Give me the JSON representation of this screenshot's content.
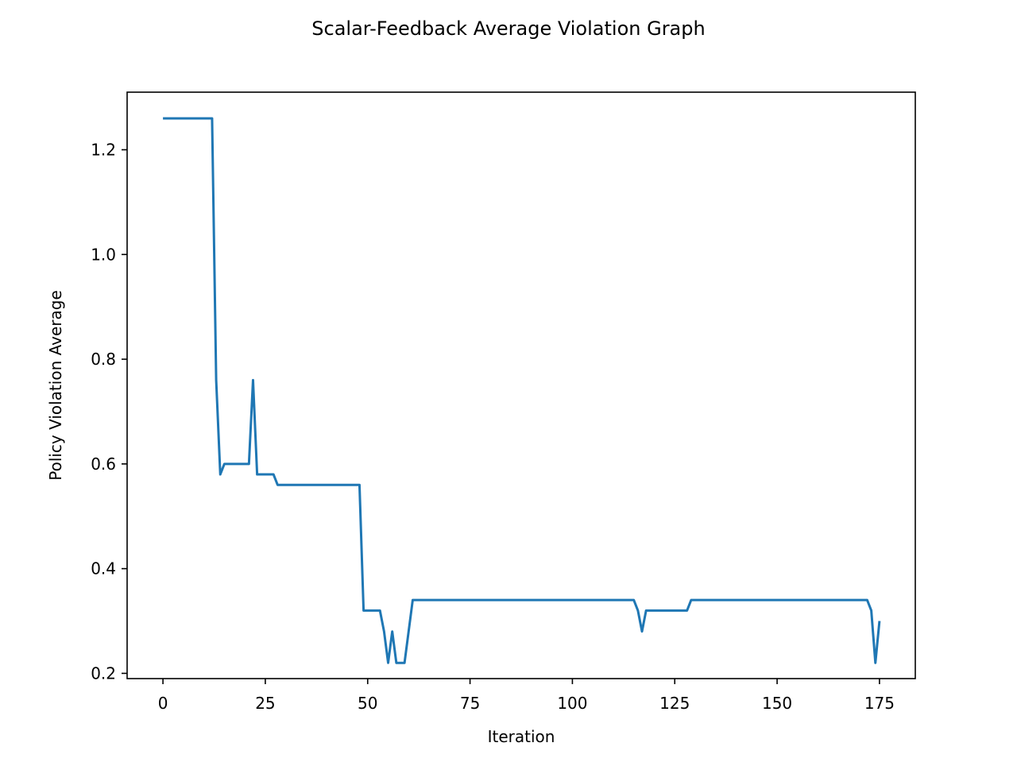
{
  "chart_data": {
    "type": "line",
    "title": "Scalar-Feedback Average Violation Graph",
    "xlabel": "Iteration",
    "ylabel": "Policy Violation Average",
    "xlim": [
      -8.75,
      183.75
    ],
    "ylim": [
      0.19,
      1.31
    ],
    "xticks": [
      0,
      25,
      50,
      75,
      100,
      125,
      150,
      175
    ],
    "yticks": [
      0.2,
      0.4,
      0.6,
      0.8,
      1.0,
      1.2
    ],
    "ytick_labels": [
      "0.2",
      "0.4",
      "0.6",
      "0.8",
      "1.0",
      "1.2"
    ],
    "grid": false,
    "series": [
      {
        "color": "#1f77b4",
        "x": [
          0,
          12,
          13,
          14,
          15,
          21,
          22,
          23,
          27,
          28,
          48,
          49,
          53,
          54,
          55,
          56,
          57,
          59,
          60,
          61,
          115,
          116,
          117,
          118,
          128,
          129,
          172,
          173,
          174,
          175
        ],
        "y": [
          1.26,
          1.26,
          0.76,
          0.58,
          0.6,
          0.6,
          0.76,
          0.58,
          0.58,
          0.56,
          0.56,
          0.32,
          0.32,
          0.28,
          0.22,
          0.28,
          0.22,
          0.22,
          0.28,
          0.34,
          0.34,
          0.32,
          0.28,
          0.32,
          0.32,
          0.34,
          0.34,
          0.32,
          0.22,
          0.3
        ]
      }
    ]
  }
}
